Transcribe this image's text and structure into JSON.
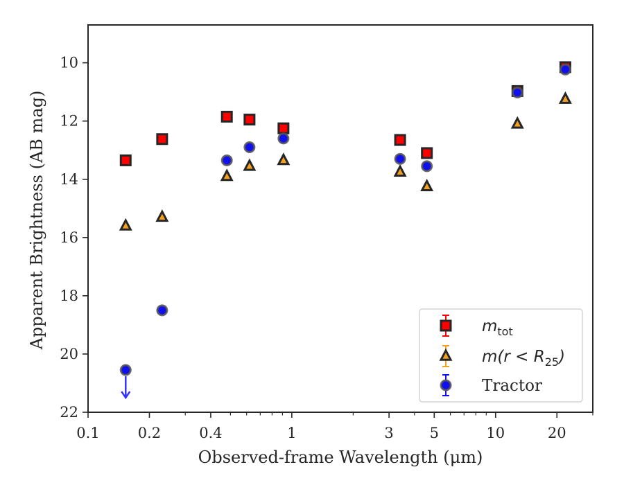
{
  "chart_data": {
    "type": "scatter",
    "xlabel": "Observed-frame Wavelength (μm)",
    "ylabel": "Apparent Brightness (AB mag)",
    "x_scale": "log",
    "y_inverted": true,
    "xlim": [
      0.1,
      30
    ],
    "ylim": [
      22,
      8.7
    ],
    "x_ticks": [
      0.1,
      0.2,
      0.4,
      1,
      3,
      5,
      10,
      20
    ],
    "x_tick_labels": [
      "0.1",
      "0.2",
      "0.4",
      "1",
      "3",
      "5",
      "10",
      "20"
    ],
    "y_ticks": [
      10,
      12,
      14,
      16,
      18,
      20,
      22
    ],
    "y_tick_labels": [
      "10",
      "12",
      "14",
      "16",
      "18",
      "20",
      "22"
    ],
    "grid": false,
    "legend_position": "lower-right",
    "series": [
      {
        "name_base": "m",
        "name_sub": "tot",
        "marker": "square",
        "color": "#ff0000",
        "edge_color": "#262626",
        "x": [
          0.153,
          0.231,
          0.48,
          0.62,
          0.91,
          3.4,
          4.6,
          12.8,
          22.0
        ],
        "y": [
          13.35,
          12.62,
          11.85,
          11.95,
          12.25,
          12.65,
          13.1,
          10.97,
          10.15
        ]
      },
      {
        "name_base": "m(r < R",
        "name_sub": "25",
        "name_end": ")",
        "marker": "triangle",
        "color": "#f5a020",
        "edge_color": "#262626",
        "x": [
          0.153,
          0.231,
          0.48,
          0.62,
          0.91,
          3.4,
          4.6,
          12.8,
          22.0
        ],
        "y": [
          15.6,
          15.3,
          13.9,
          13.55,
          13.35,
          13.75,
          14.25,
          12.1,
          11.25
        ]
      },
      {
        "name": "Tractor",
        "marker": "circle",
        "color": "#1010ee",
        "edge_color": "#555555",
        "x": [
          0.153,
          0.231,
          0.48,
          0.62,
          0.91,
          3.4,
          4.6,
          12.8,
          22.0
        ],
        "y": [
          20.55,
          18.5,
          13.35,
          12.9,
          12.6,
          13.3,
          13.55,
          11.02,
          10.23
        ],
        "upper_limit_x": [
          0.153
        ],
        "upper_limit_y": [
          20.55
        ],
        "upper_limit_color": "#3333ff"
      }
    ]
  }
}
